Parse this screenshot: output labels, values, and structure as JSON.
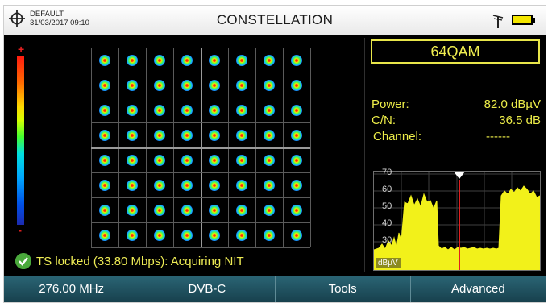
{
  "header": {
    "profile_name": "DEFAULT",
    "datetime": "31/03/2017 09:10",
    "title": "CONSTELLATION"
  },
  "icons": {
    "crosshair": "crosshair-icon",
    "antenna": "antenna-icon",
    "battery": "battery-icon",
    "status": "check-icon"
  },
  "colorscale": {
    "max_label": "+",
    "min_label": "-"
  },
  "constellation": {
    "rows": 8,
    "cols": 8
  },
  "measurements": {
    "modulation": "64QAM",
    "power_label": "Power:",
    "power_value": "82.0 dBµV",
    "cn_label": "C/N:",
    "cn_value": "36.5 dB",
    "channel_label": "Channel:",
    "channel_value": "------"
  },
  "spectrum": {
    "y_ticks": [
      "70",
      "60",
      "50",
      "40",
      "30"
    ],
    "unit": "dBµV"
  },
  "status": {
    "text": "TS locked (33.80 Mbps): Acquiring NIT"
  },
  "softkeys": [
    "276.00 MHz",
    "DVB-C",
    "Tools",
    "Advanced"
  ],
  "colors": {
    "accent_yellow": "#eded49",
    "softkey_bg": "#1f5463",
    "ok_green": "#4aa93c"
  }
}
